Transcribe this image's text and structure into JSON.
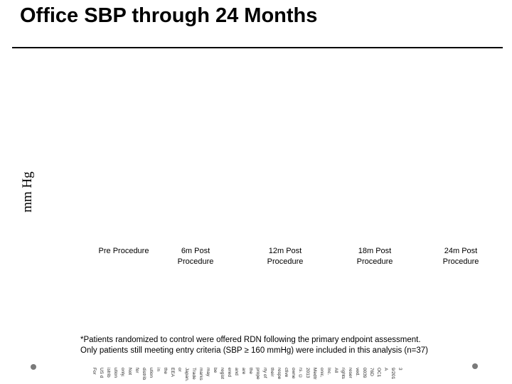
{
  "slide": {
    "title": "Office SBP through 24 Months"
  },
  "chart": {
    "y_axis_label": "mm Hg",
    "categories": [
      {
        "line1": "Pre Procedure",
        "line2": ""
      },
      {
        "line1": "6m Post",
        "line2": "Procedure"
      },
      {
        "line1": "12m Post",
        "line2": "Procedure"
      },
      {
        "line1": "18m Post",
        "line2": "Procedure"
      },
      {
        "line1": "24m Post",
        "line2": "Procedure"
      }
    ]
  },
  "chart_data": {
    "type": "bar",
    "title": "Office SBP through 24 Months",
    "xlabel": "",
    "ylabel": "mm Hg",
    "categories": [
      "Pre Procedure",
      "6m Post Procedure",
      "12m Post Procedure",
      "18m Post Procedure",
      "24m Post Procedure"
    ],
    "series": [],
    "note": "plot area rendered empty - no data points visible in screenshot",
    "grid": false,
    "legend_position": "none"
  },
  "footnote": {
    "line1": "*Patients randomized to control were offered RDN following the primary endpoint assessment.",
    "line2": "Only patients still meeting entry criteria (SBP ≥ 160 mmHg) were included in this analysis (n=37)"
  },
  "footer": {
    "fragments": [
      "For",
      "US d",
      "istrib",
      "ution",
      "only.",
      "Not",
      "for",
      "distrib",
      "ution",
      "in",
      "the",
      "EEA",
      "or",
      "Japan.",
      "Trade",
      "marks",
      "may",
      "be",
      "regist",
      "ered",
      "and",
      "are",
      "the",
      "prope",
      "rty of",
      "their",
      "respe",
      "ctive",
      "owne",
      "rs. ©",
      "2013",
      "Medtr",
      "onic,",
      "Inc.",
      "All",
      "rights",
      "reser",
      "ved.",
      "0039",
      "76D",
      "OC1",
      "A",
      "9/201",
      "3"
    ]
  },
  "colors": {
    "background": "#ffffff",
    "text": "#000000",
    "bullet_gray": "#7a7a7a"
  }
}
